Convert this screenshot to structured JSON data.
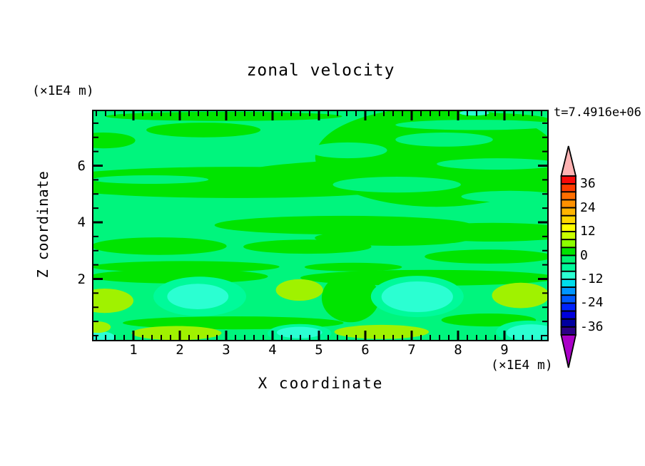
{
  "title": "zonal velocity",
  "timestamp": "t=7.4916e+06",
  "axes": {
    "x_label": "X coordinate",
    "x_unit": "(×1E4 m)",
    "y_label": "Z coordinate",
    "y_unit": "(×1E4 m)",
    "x_tick_labels": [
      1,
      2,
      3,
      4,
      5,
      6,
      7,
      8,
      9
    ],
    "y_tick_labels": [
      2,
      4,
      6
    ],
    "x_minor_step": 0.2,
    "y_minor_step": 0.5
  },
  "colorbar": {
    "tick_labels": [
      36,
      24,
      12,
      0,
      -12,
      -24,
      -36
    ],
    "range": [
      -40,
      40
    ],
    "level_step": 4,
    "box_colors_top_to_bottom": [
      "#fa0a0a",
      "#ff3c00",
      "#ff6e00",
      "#ff9100",
      "#ffb400",
      "#ffd700",
      "#ffff00",
      "#c8ff00",
      "#8cff00",
      "#00e400",
      "#00f573",
      "#00fa9a",
      "#2bffd2",
      "#00dcec",
      "#0096ff",
      "#005aff",
      "#0023ff",
      "#0000dc",
      "#0000a0",
      "#2d0087"
    ],
    "over_arrow_color": "#ffb3b3",
    "under_arrow_color": "#aa00c8"
  },
  "chart_data": {
    "type": "heatmap",
    "title": "zonal velocity",
    "xlabel": "X coordinate (×1E4 m)",
    "ylabel": "Z coordinate (×1E4 m)",
    "time_label": "t=7.4916e+06",
    "x_range": [
      0,
      9.94
    ],
    "z_range": [
      -0.16,
      7.91
    ],
    "value_range": [
      -40,
      40
    ],
    "contour_interval": 4,
    "colorbar_tick_labels": [
      36,
      24,
      12,
      0,
      -12,
      -24,
      -36
    ],
    "legend_position": "right",
    "grid": false,
    "field_summary": "Zonal velocity section: values mostly between -12 and +8 m/s; background near -2, bright-green streaks 0..4 across upper region, turquoise minima (-12..-8) near z=1 at x≈2.4 and x≈7.1 and along bottom edge, yellow maxima (4..8) near z=1 at left edge, x≈4.6, x≈9.4 and along bottom edge",
    "background_level": "-4to0",
    "level_colors": {
      "4to8": "#a0f200",
      "0to4": "#00e400",
      "-4to0": "#00f57d",
      "-8to-4": "#00fa9a",
      "-12to-8": "#2bffd2"
    },
    "regions": [
      {
        "level": "0to4",
        "x": 2.95,
        "z": 7.74,
        "rx": 2.55,
        "rz": 0.16
      },
      {
        "level": "0to4",
        "x": 8.32,
        "z": 7.62,
        "rx": 1.65,
        "rz": 0.25
      },
      {
        "level": "0to4",
        "x": 7.54,
        "z": 6.31,
        "rx": 2.62,
        "rz": 1.76
      },
      {
        "level": "0to4",
        "x": 2.51,
        "z": 7.26,
        "rx": 1.23,
        "rz": 0.26
      },
      {
        "level": "0to4",
        "x": 0.35,
        "z": 6.89,
        "rx": 0.69,
        "rz": 0.28
      },
      {
        "level": "0to4",
        "x": 7.35,
        "z": 6.67,
        "rx": 2.0,
        "rz": 0.25
      },
      {
        "level": "0to4",
        "x": 3.22,
        "z": 5.41,
        "rx": 4.31,
        "rz": 0.55
      },
      {
        "level": "0to4",
        "x": 7.06,
        "z": 5.59,
        "rx": 4.0,
        "rz": 0.65
      },
      {
        "level": "0to4",
        "x": 9.68,
        "z": 5.71,
        "rx": 1.38,
        "rz": 0.7
      },
      {
        "level": "0to4",
        "x": 5.52,
        "z": 3.9,
        "rx": 2.77,
        "rz": 0.33
      },
      {
        "level": "0to4",
        "x": 8.75,
        "z": 3.65,
        "rx": 1.85,
        "rz": 0.33
      },
      {
        "level": "0to4",
        "x": 1.55,
        "z": 3.16,
        "rx": 1.46,
        "rz": 0.31
      },
      {
        "level": "0to4",
        "x": 4.75,
        "z": 3.14,
        "rx": 1.38,
        "rz": 0.25
      },
      {
        "level": "0to4",
        "x": 6.6,
        "z": 3.45,
        "rx": 1.69,
        "rz": 0.28
      },
      {
        "level": "0to4",
        "x": 8.66,
        "z": 2.79,
        "rx": 1.38,
        "rz": 0.25
      },
      {
        "level": "0to4",
        "x": 2.12,
        "z": 2.43,
        "rx": 2.03,
        "rz": 0.2
      },
      {
        "level": "0to4",
        "x": 5.74,
        "z": 2.42,
        "rx": 1.05,
        "rz": 0.15
      },
      {
        "level": "0to4",
        "x": 1.98,
        "z": 2.09,
        "rx": 1.92,
        "rz": 0.25
      },
      {
        "level": "0to4",
        "x": 7.37,
        "z": 2.04,
        "rx": 2.77,
        "rz": 0.28
      },
      {
        "level": "0to4",
        "x": 5.68,
        "z": 1.33,
        "rx": 0.62,
        "rz": 0.86
      },
      {
        "level": "0to4",
        "x": 3.15,
        "z": 0.45,
        "rx": 2.38,
        "rz": 0.23
      },
      {
        "level": "0to4",
        "x": 8.66,
        "z": 0.55,
        "rx": 1.02,
        "rz": 0.23
      },
      {
        "level": "-4to0",
        "x": 8.39,
        "z": 7.44,
        "rx": 1.74,
        "rz": 0.18
      },
      {
        "level": "-4to0",
        "x": 7.7,
        "z": 6.92,
        "rx": 1.05,
        "rz": 0.25
      },
      {
        "level": "-4to0",
        "x": 5.62,
        "z": 6.54,
        "rx": 0.85,
        "rz": 0.28
      },
      {
        "level": "-4to0",
        "x": 8.85,
        "z": 6.06,
        "rx": 1.31,
        "rz": 0.2
      },
      {
        "level": "-4to0",
        "x": 6.68,
        "z": 5.33,
        "rx": 1.38,
        "rz": 0.28
      },
      {
        "level": "-4to0",
        "x": 9.12,
        "z": 4.91,
        "rx": 1.05,
        "rz": 0.2
      },
      {
        "level": "-4to0",
        "x": 1.36,
        "z": 5.51,
        "rx": 1.26,
        "rz": 0.15
      },
      {
        "level": "-8to-4",
        "x": 2.43,
        "z": 1.38,
        "rx": 1.0,
        "rz": 0.7
      },
      {
        "level": "-8to-4",
        "x": 7.12,
        "z": 1.38,
        "rx": 1.0,
        "rz": 0.73
      },
      {
        "level": "-8to-4",
        "x": 9.51,
        "z": 0.13,
        "rx": 0.69,
        "rz": 0.4
      },
      {
        "level": "-8to-4",
        "x": 4.58,
        "z": 0.08,
        "rx": 0.69,
        "rz": 0.33
      },
      {
        "level": "-12to-8",
        "x": 8.35,
        "z": 7.86,
        "rx": 0.32,
        "rz": 0.09
      },
      {
        "level": "-12to-8",
        "x": 2.39,
        "z": 1.38,
        "rx": 0.66,
        "rz": 0.45
      },
      {
        "level": "-12to-8",
        "x": 7.12,
        "z": 1.37,
        "rx": 0.77,
        "rz": 0.54
      },
      {
        "level": "-12to-8",
        "x": 9.58,
        "z": 0.1,
        "rx": 0.54,
        "rz": 0.3
      },
      {
        "level": "-12to-8",
        "x": 4.58,
        "z": 0.11,
        "rx": 0.49,
        "rz": 0.2
      },
      {
        "level": "-12to-8",
        "x": 0.26,
        "z": -0.05,
        "rx": 0.34,
        "rz": 0.2
      },
      {
        "level": "4to8",
        "x": 0.38,
        "z": 1.23,
        "rx": 0.62,
        "rz": 0.43
      },
      {
        "level": "4to8",
        "x": 0.23,
        "z": 0.3,
        "rx": 0.28,
        "rz": 0.2
      },
      {
        "level": "4to8",
        "x": 4.58,
        "z": 1.61,
        "rx": 0.51,
        "rz": 0.38
      },
      {
        "level": "4to8",
        "x": 9.35,
        "z": 1.42,
        "rx": 0.62,
        "rz": 0.45
      },
      {
        "level": "4to8",
        "x": 1.93,
        "z": 0.09,
        "rx": 0.97,
        "rz": 0.25
      },
      {
        "level": "4to8",
        "x": 6.35,
        "z": 0.13,
        "rx": 1.02,
        "rz": 0.25
      }
    ]
  }
}
